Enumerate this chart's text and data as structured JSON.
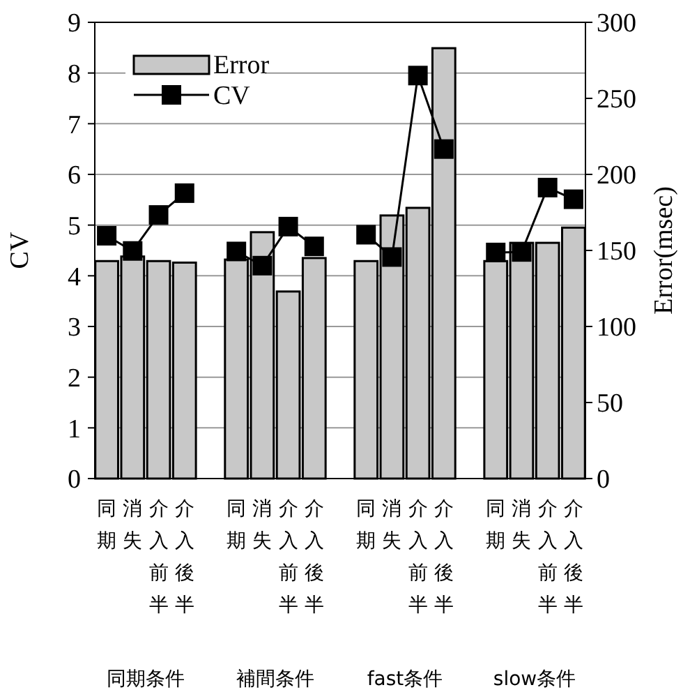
{
  "chart_data": {
    "type": "bar",
    "categories": [
      "同期",
      "消失",
      "介入前半",
      "介入後半",
      null,
      "同期",
      "消失",
      "介入前半",
      "介入後半",
      null,
      "同期",
      "消失",
      "介入前半",
      "介入後半",
      null,
      "同期",
      "消失",
      "介入前半",
      "介入後半"
    ],
    "series": [
      {
        "name": "Error",
        "axis": "y2",
        "color": "#c8c8c8",
        "values": [
          143,
          146,
          143,
          142,
          null,
          144,
          162,
          123,
          145,
          null,
          143,
          173,
          178,
          283,
          null,
          143,
          155,
          155,
          165
        ]
      },
      {
        "name": "CV",
        "type": "line",
        "color": "#000000",
        "values": [
          4.79,
          4.49,
          5.2,
          5.63,
          null,
          4.48,
          4.2,
          4.97,
          4.58,
          null,
          4.81,
          4.37,
          7.95,
          6.5,
          null,
          4.46,
          4.47,
          5.74,
          5.51
        ]
      }
    ],
    "ylabel": "CV",
    "y2label": "Error(msec)",
    "ylim": [
      0,
      9
    ],
    "yticks": [
      0,
      1,
      2,
      3,
      4,
      5,
      6,
      7,
      8,
      9
    ],
    "y2lim": [
      0,
      300
    ],
    "y2ticks": [
      0,
      50,
      100,
      150,
      200,
      250,
      300
    ],
    "annotations": [
      "同期条件",
      "補間条件",
      "fast条件",
      "slow条件"
    ],
    "grid": "y",
    "legend": "top left",
    "marker": "square",
    "line_style": "solid"
  }
}
